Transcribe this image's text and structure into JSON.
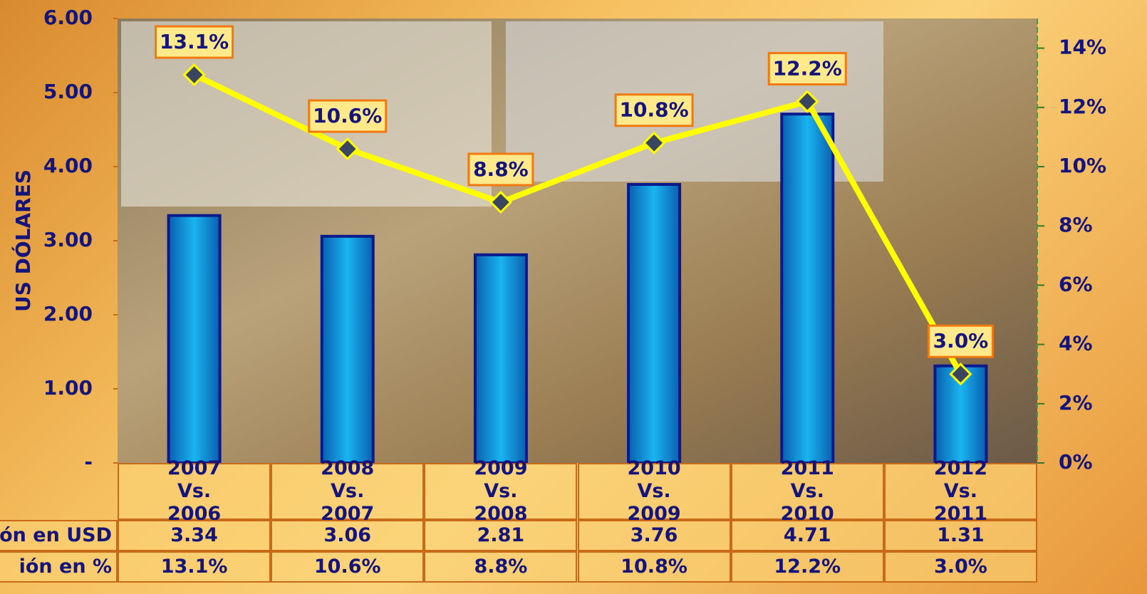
{
  "chart_data": {
    "type": "bar",
    "y_label": "US DÓLARES",
    "categories": [
      "2007 Vs. 2006",
      "2008 Vs. 2007",
      "2009 Vs. 2008",
      "2010 Vs. 2009",
      "2011 Vs. 2010",
      "2012 Vs. 2011"
    ],
    "series": [
      {
        "name": "ión en USD",
        "type": "bar",
        "color": "#0a8fd8",
        "values": [
          3.34,
          3.06,
          2.81,
          3.76,
          4.71,
          1.31
        ]
      },
      {
        "name": "ión en %",
        "type": "line",
        "axis": "y2",
        "color": "#ffff00",
        "values": [
          13.1,
          10.6,
          8.8,
          10.8,
          12.2,
          3.0
        ],
        "value_labels": [
          "13.1%",
          "10.6%",
          "8.8%",
          "10.8%",
          "12.2%",
          "3.0%"
        ]
      }
    ],
    "ylim": [
      0,
      6
    ],
    "yticks": [
      {
        "value": 0,
        "label": "-"
      },
      {
        "value": 1,
        "label": "1.00"
      },
      {
        "value": 2,
        "label": "2.00"
      },
      {
        "value": 3,
        "label": "3.00"
      },
      {
        "value": 4,
        "label": "4.00"
      },
      {
        "value": 5,
        "label": "5.00"
      },
      {
        "value": 6,
        "label": "6.00"
      }
    ],
    "y2lim": [
      0,
      15
    ],
    "y2ticks": [
      {
        "value": 0,
        "label": "0%"
      },
      {
        "value": 2,
        "label": "2%"
      },
      {
        "value": 4,
        "label": "4%"
      },
      {
        "value": 6,
        "label": "6%"
      },
      {
        "value": 8,
        "label": "8%"
      },
      {
        "value": 10,
        "label": "10%"
      },
      {
        "value": 12,
        "label": "12%"
      },
      {
        "value": 14,
        "label": "14%"
      }
    ]
  }
}
